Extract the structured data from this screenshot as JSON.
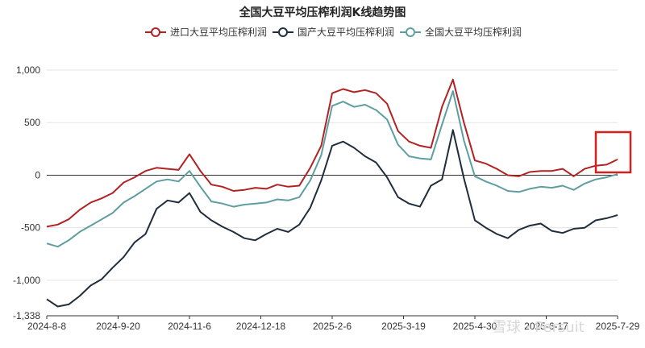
{
  "chart_data": {
    "type": "line",
    "title": "全国大豆平均压榨利润K线趋势图",
    "xlabel": "",
    "ylabel": "",
    "ylim": [
      -1338,
      1000
    ],
    "yticks": [
      1000,
      500,
      0,
      -500,
      -1000,
      -1338
    ],
    "ytick_labels": [
      "1,000",
      "500",
      "0",
      "-500",
      "-1,000",
      "-1,338"
    ],
    "x_tick_labels": [
      "2024-8-8",
      "2024-9-20",
      "2024-11-6",
      "2024-12-18",
      "2025-2-6",
      "2025-3-19",
      "2025-4-30",
      "2025-6-17",
      "2025-7-29"
    ],
    "grid": true,
    "legend_position": "top-center",
    "highlight_box": "right end of series (2025-7 to 2025-8)",
    "x": [
      "2024-8-8",
      "2024-8-16",
      "2024-8-23",
      "2024-8-30",
      "2024-9-6",
      "2024-9-13",
      "2024-9-20",
      "2024-9-27",
      "2024-10-4",
      "2024-10-11",
      "2024-10-18",
      "2024-10-25",
      "2024-11-1",
      "2024-11-6",
      "2024-11-13",
      "2024-11-20",
      "2024-11-27",
      "2024-12-4",
      "2024-12-11",
      "2024-12-18",
      "2024-12-25",
      "2025-1-1",
      "2025-1-8",
      "2025-1-15",
      "2025-1-22",
      "2025-1-29",
      "2025-2-6",
      "2025-2-13",
      "2025-2-20",
      "2025-2-27",
      "2025-3-6",
      "2025-3-13",
      "2025-3-19",
      "2025-3-26",
      "2025-4-2",
      "2025-4-9",
      "2025-4-16",
      "2025-4-23",
      "2025-4-30",
      "2025-5-7",
      "2025-5-14",
      "2025-5-21",
      "2025-5-28",
      "2025-6-4",
      "2025-6-11",
      "2025-6-17",
      "2025-6-24",
      "2025-7-1",
      "2025-7-8",
      "2025-7-15",
      "2025-7-22",
      "2025-7-29",
      "2025-8-5"
    ],
    "series": [
      {
        "name": "进口大豆平均压榨利润",
        "color": "#b22222",
        "values": [
          -490,
          -470,
          -420,
          -330,
          -260,
          -220,
          -170,
          -70,
          -20,
          40,
          70,
          60,
          50,
          200,
          40,
          -90,
          -110,
          -150,
          -140,
          -120,
          -130,
          -90,
          -110,
          -100,
          70,
          280,
          780,
          820,
          790,
          810,
          780,
          680,
          420,
          320,
          280,
          260,
          650,
          910,
          500,
          140,
          110,
          60,
          0,
          -10,
          30,
          40,
          40,
          60,
          -10,
          60,
          90,
          100,
          150
        ]
      },
      {
        "name": "国产大豆平均压榨利润",
        "color": "#1f2d3d",
        "values": [
          -1180,
          -1250,
          -1230,
          -1150,
          -1050,
          -990,
          -880,
          -780,
          -640,
          -560,
          -320,
          -240,
          -260,
          -170,
          -350,
          -430,
          -490,
          -540,
          -600,
          -620,
          -560,
          -510,
          -540,
          -470,
          -310,
          -50,
          280,
          320,
          260,
          180,
          120,
          -20,
          -210,
          -270,
          -300,
          -100,
          -40,
          430,
          -30,
          -430,
          -500,
          -560,
          -600,
          -520,
          -480,
          -460,
          -530,
          -550,
          -510,
          -500,
          -430,
          -410,
          -380
        ]
      },
      {
        "name": "全国大豆平均压榨利润",
        "color": "#5f9ea0",
        "values": [
          -650,
          -680,
          -620,
          -540,
          -480,
          -420,
          -360,
          -260,
          -200,
          -130,
          -60,
          -40,
          -60,
          40,
          -110,
          -250,
          -270,
          -300,
          -280,
          -270,
          -260,
          -230,
          -240,
          -210,
          -50,
          190,
          660,
          700,
          650,
          670,
          620,
          530,
          290,
          180,
          160,
          150,
          480,
          800,
          330,
          -10,
          -60,
          -100,
          -150,
          -160,
          -130,
          -110,
          -120,
          -100,
          -140,
          -80,
          -40,
          -20,
          10
        ]
      }
    ]
  },
  "watermark": "雪球 · Persuit"
}
